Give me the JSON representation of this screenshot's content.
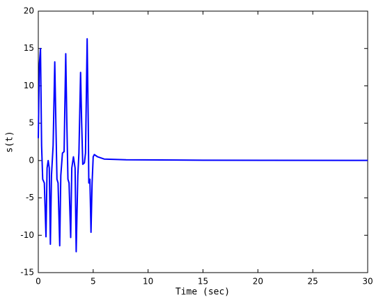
{
  "chart_data": {
    "type": "line",
    "xlabel": "Time (sec)",
    "ylabel": "s(t)",
    "xlim": [
      0,
      30
    ],
    "ylim": [
      -15,
      20
    ],
    "xticks": [
      0,
      5,
      10,
      15,
      20,
      25,
      30
    ],
    "yticks": [
      -15,
      -10,
      -5,
      0,
      5,
      10,
      15,
      20
    ],
    "grid": false,
    "series": [
      {
        "name": "s(t)",
        "color": "#0000ff",
        "x": [
          0,
          0.1,
          0.2,
          0.3,
          0.4,
          0.55,
          0.7,
          0.8,
          0.9,
          1.0,
          1.1,
          1.2,
          1.35,
          1.5,
          1.6,
          1.7,
          1.8,
          1.95,
          2.05,
          2.2,
          2.35,
          2.5,
          2.6,
          2.7,
          2.8,
          2.95,
          3.05,
          3.2,
          3.35,
          3.45,
          3.6,
          3.7,
          3.85,
          3.95,
          4.05,
          4.2,
          4.3,
          4.45,
          4.55,
          4.6,
          4.7,
          4.8,
          4.9,
          5.0,
          5.1,
          5.4,
          6,
          8,
          15,
          30
        ],
        "values": [
          3,
          13,
          15,
          2,
          -2.5,
          -3,
          -10.2,
          -1,
          0,
          -1,
          -11.2,
          -2,
          2,
          13.2,
          5,
          -2.5,
          -3,
          -11.4,
          -2,
          1,
          1.2,
          14.3,
          5,
          -2.5,
          -3,
          -10.3,
          -1,
          0.5,
          -1,
          -12.2,
          -2,
          1,
          11.8,
          5,
          -0.5,
          -0.3,
          1,
          16.3,
          5,
          -3,
          -2.5,
          -9.6,
          -3,
          0.5,
          0.8,
          0.5,
          0.2,
          0.1,
          0.05,
          0.02
        ]
      }
    ]
  }
}
